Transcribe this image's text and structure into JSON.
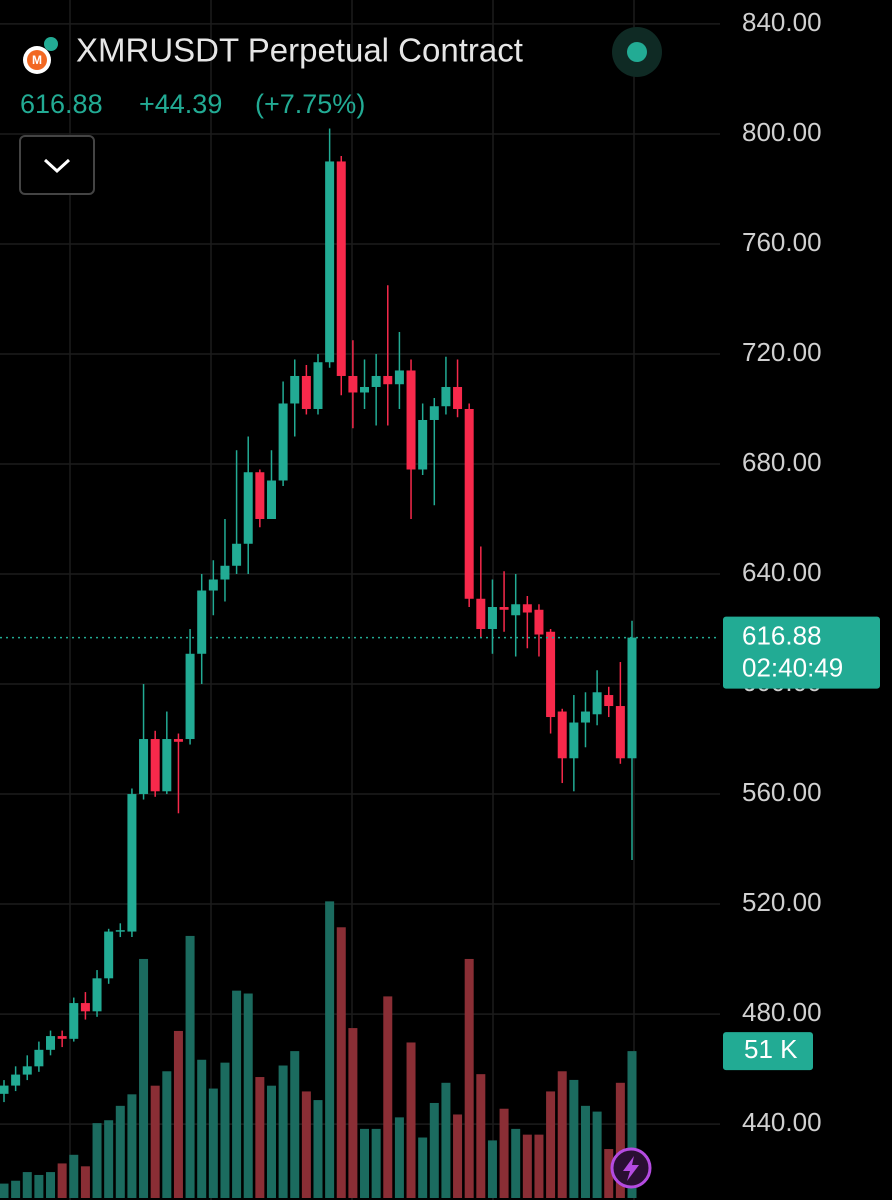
{
  "header": {
    "title": "XMRUSDT Perpetual Contract",
    "price": "616.88",
    "change": "+44.39",
    "change_pct": "(+7.75%)"
  },
  "chart_data": {
    "type": "candlestick",
    "up_color": "#22ab94",
    "down_color": "#f7294b",
    "volume_up_color": "#1b6b5f",
    "volume_down_color": "#8a2e35",
    "ylim": [
      412.4,
      848.7
    ],
    "yticks": [
      {
        "value": 840,
        "label": "840.00"
      },
      {
        "value": 800,
        "label": "800.00"
      },
      {
        "value": 760,
        "label": "760.00"
      },
      {
        "value": 720,
        "label": "720.00"
      },
      {
        "value": 680,
        "label": "680.00"
      },
      {
        "value": 640,
        "label": "640.00"
      },
      {
        "value": 600,
        "label": "600.00"
      },
      {
        "value": 560,
        "label": "560.00"
      },
      {
        "value": 520,
        "label": "520.00"
      },
      {
        "value": 480,
        "label": "480.00"
      },
      {
        "value": 440,
        "label": "440.00"
      }
    ],
    "grid": true,
    "open": [
      451,
      454,
      458,
      461,
      467,
      472,
      471,
      484,
      481,
      493,
      510,
      510,
      560,
      580,
      561,
      580,
      580,
      611,
      634,
      638,
      643,
      651,
      677,
      660,
      674,
      702,
      712,
      700,
      717,
      790,
      712,
      706,
      708,
      712,
      709,
      714,
      678,
      696,
      701,
      708,
      700,
      631,
      620,
      628,
      625,
      629,
      627,
      619,
      590,
      573,
      586,
      589,
      596,
      592,
      573
    ],
    "high": [
      456,
      461,
      465,
      470,
      474,
      474,
      486,
      488,
      496,
      511,
      513,
      562,
      600,
      583,
      590,
      582,
      620,
      640,
      645,
      660,
      685,
      690,
      678,
      685,
      710,
      718,
      716,
      720,
      802,
      792,
      725,
      718,
      720,
      745,
      728,
      718,
      702,
      704,
      719,
      718,
      702,
      650,
      638,
      641,
      640,
      632,
      629,
      620,
      591,
      596,
      597,
      605,
      599,
      608,
      623
    ],
    "low": [
      448,
      452,
      456,
      459,
      465,
      468,
      470,
      478,
      479,
      491,
      508,
      508,
      558,
      559,
      560,
      553,
      578,
      600,
      625,
      630,
      640,
      640,
      657,
      660,
      672,
      690,
      698,
      698,
      715,
      705,
      693,
      700,
      694,
      694,
      700,
      660,
      676,
      665,
      698,
      697,
      628,
      617,
      611,
      619,
      610,
      613,
      610,
      582,
      564,
      561,
      577,
      585,
      588,
      571,
      536
    ],
    "close": [
      454,
      458,
      461,
      467,
      472,
      471,
      484,
      481,
      493,
      510,
      510.5,
      560,
      580,
      561,
      580,
      579,
      611,
      634,
      638,
      643,
      651,
      677,
      660,
      674,
      702,
      712,
      700,
      717,
      790,
      712,
      706,
      708,
      712,
      709,
      714,
      678,
      696,
      701,
      708,
      700,
      631,
      620,
      628,
      627,
      629,
      626,
      618,
      588,
      573,
      586,
      590,
      597,
      592,
      573,
      616.88
    ],
    "volume": [
      5,
      6,
      9,
      8,
      9,
      12,
      15,
      11,
      26,
      27,
      32,
      36,
      83,
      39,
      44,
      58,
      91,
      48,
      38,
      47,
      72,
      71,
      42,
      39,
      46,
      51,
      37,
      34,
      103,
      94,
      59,
      24,
      24,
      70,
      28,
      54,
      21,
      33,
      40,
      29,
      83,
      43,
      20,
      31,
      24,
      22,
      22,
      37,
      44,
      41,
      32,
      30,
      17,
      40,
      51
    ],
    "volume_label": "51 K",
    "countdown": "02:40:49"
  }
}
